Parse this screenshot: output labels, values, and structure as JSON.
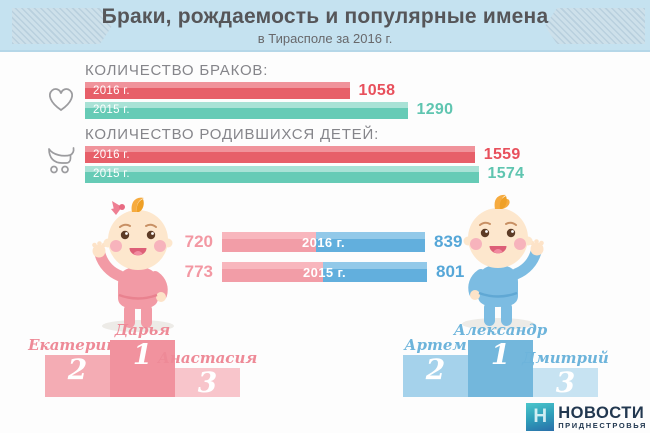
{
  "header": {
    "title": "Браки, рождаемость и популярные имена",
    "subtitle": "в Тирасполе за 2016 г."
  },
  "chart_data": [
    {
      "type": "bar",
      "orientation": "horizontal",
      "title": "КОЛИЧЕСТВО БРАКОВ:",
      "icon": "heart-icon",
      "categories": [
        "2016 г.",
        "2015 г."
      ],
      "values": [
        1058,
        1290
      ],
      "bar_colors": [
        "#e75f69",
        "#66cbb6"
      ],
      "value_colors": [
        "#e8505c",
        "#5fc5b0"
      ],
      "scale_max": 1600,
      "grid": false,
      "legend": false
    },
    {
      "type": "bar",
      "orientation": "horizontal",
      "title": "КОЛИЧЕСТВО РОДИВШИХСЯ ДЕТЕЙ:",
      "icon": "stroller-icon",
      "categories": [
        "2016 г.",
        "2015 г."
      ],
      "values": [
        1559,
        1574
      ],
      "bar_colors": [
        "#e75f69",
        "#66cbb6"
      ],
      "value_colors": [
        "#e8505c",
        "#5fc5b0"
      ],
      "scale_max": 1600,
      "grid": false,
      "legend": false
    },
    {
      "type": "bar",
      "subtype": "stacked",
      "orientation": "horizontal",
      "title": "",
      "categories": [
        "2016 г.",
        "2015 г."
      ],
      "series": [
        {
          "name": "girls",
          "values": [
            720,
            773
          ],
          "color": "#f29da7"
        },
        {
          "name": "boys",
          "values": [
            839,
            801
          ],
          "color": "#62afdd"
        }
      ],
      "scale_max": 1574,
      "grid": false,
      "legend": false
    }
  ],
  "podiums": {
    "girls": {
      "steps": [
        {
          "rank": "2",
          "name": "Екатерина"
        },
        {
          "rank": "1",
          "name": "Дарья"
        },
        {
          "rank": "3",
          "name": "Анастасия"
        }
      ]
    },
    "boys": {
      "steps": [
        {
          "rank": "2",
          "name": "Артем"
        },
        {
          "rank": "1",
          "name": "Александр"
        },
        {
          "rank": "3",
          "name": "Дмитрий"
        }
      ]
    }
  },
  "footer": {
    "logo_letter": "Н",
    "brand": "НОВОСТИ",
    "brand_sub": "ПРИДНЕСТРОВЬЯ"
  },
  "colors": {
    "header_bg": "#c5e2f0",
    "red_bar": "#e75f69",
    "teal_bar": "#66cbb6",
    "girl_pink": "#f29da7",
    "boy_blue": "#62afdd",
    "podium_girls": [
      "#f4acb4",
      "#f1929e",
      "#f8c5cb"
    ],
    "podium_boys": [
      "#a5d2eb",
      "#73b7dc",
      "#c7e3f2"
    ],
    "brand_navy": "#223850"
  }
}
